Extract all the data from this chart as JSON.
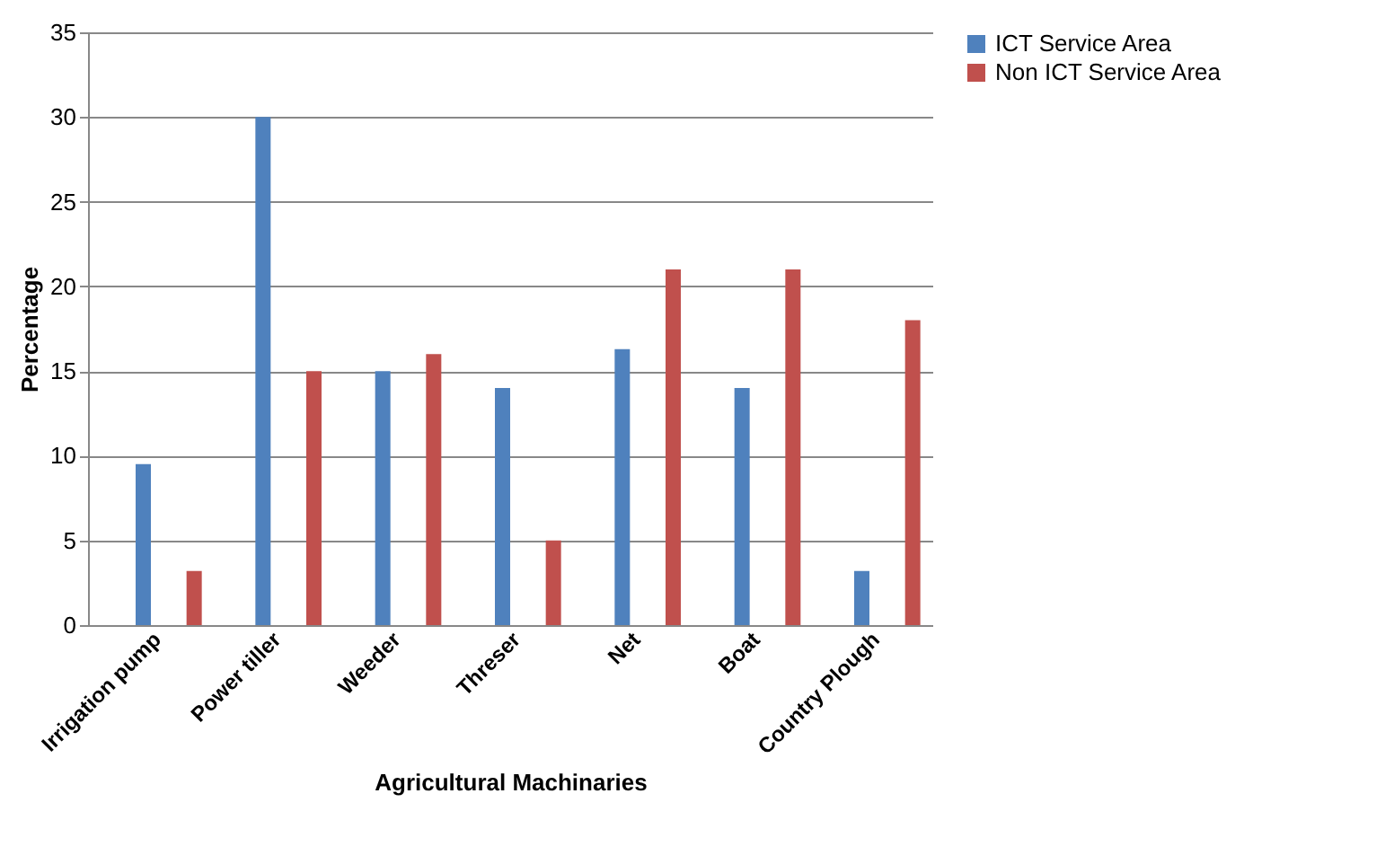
{
  "chart_data": {
    "type": "bar",
    "xlabel": "Agricultural Machinaries",
    "ylabel": "Percentage",
    "categories": [
      "Irrigation pump",
      "Power tiller",
      "Weeder",
      "Threser",
      "Net",
      "Boat",
      "Country Plough"
    ],
    "series": [
      {
        "name": "ICT Service Area",
        "color": "#4f81bd",
        "values": [
          9.5,
          30,
          15,
          14,
          16.3,
          14,
          3.2
        ]
      },
      {
        "name": "Non ICT  Service Area",
        "color": "#c0504d",
        "values": [
          3.2,
          15,
          16,
          5,
          21,
          21,
          18
        ]
      }
    ],
    "ylim": [
      0,
      35
    ],
    "yticks": [
      0,
      5,
      10,
      15,
      20,
      25,
      30,
      35
    ],
    "grid": "y",
    "legend": "right"
  }
}
